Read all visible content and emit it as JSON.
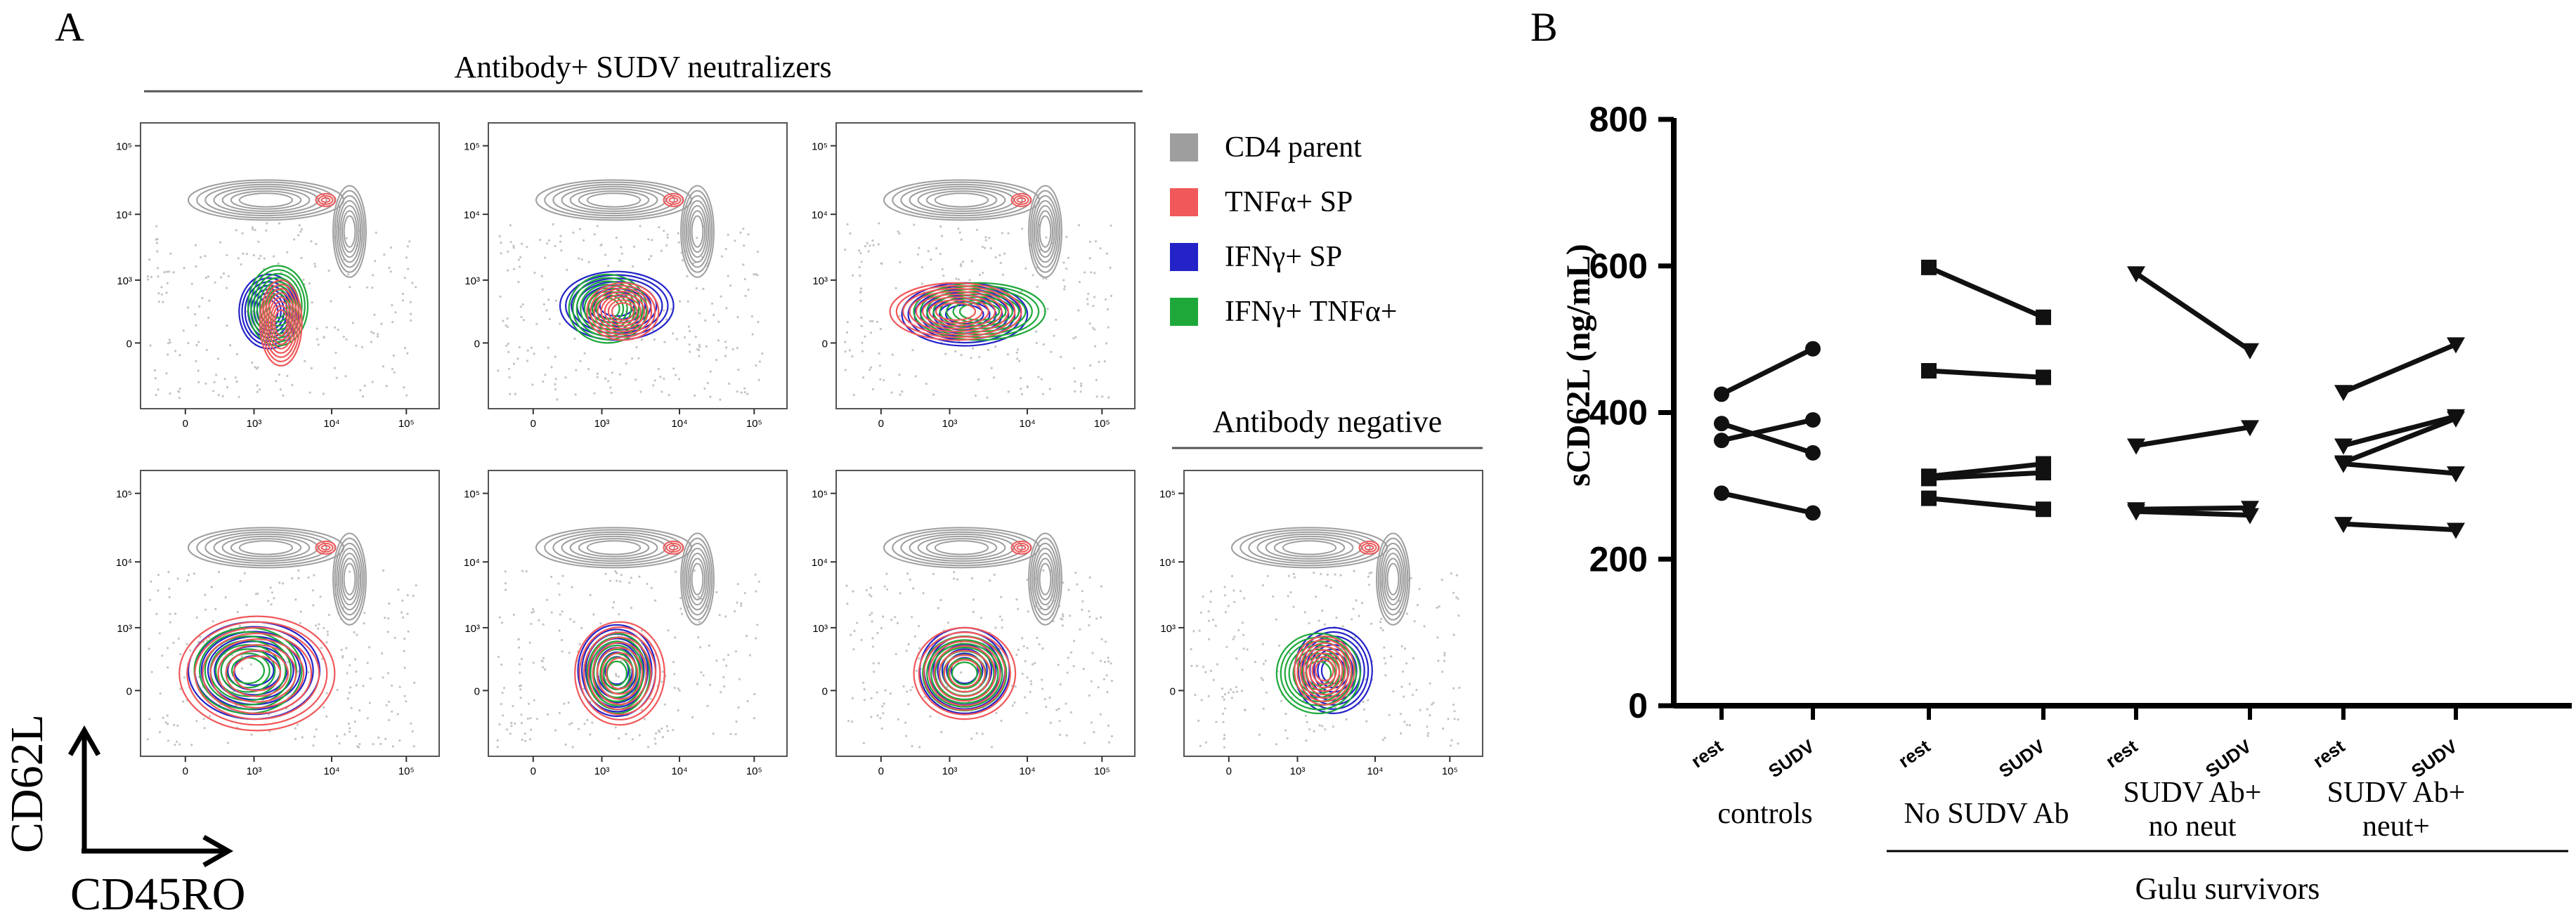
{
  "panel_a": {
    "label": "A",
    "header_top": "Antibody+ SUDV neutralizers",
    "header_negative": "Antibody negative",
    "y_axis_label": "CD62L",
    "x_axis_label": "CD45RO",
    "y_ticks": [
      "10⁵",
      "10⁴",
      "10³",
      "0"
    ],
    "x_ticks": [
      "0",
      "10³",
      "10⁴",
      "10⁵"
    ],
    "legend": [
      {
        "label": "CD4 parent",
        "color": "#9e9e9e"
      },
      {
        "label": "TNFα+ SP",
        "color": "#f0585a"
      },
      {
        "label": "IFNγ+ SP",
        "color": "#2323c8"
      },
      {
        "label": "IFNγ+ TNFα+",
        "color": "#1fa83a"
      }
    ]
  },
  "panel_b": {
    "label": "B",
    "group_label_gulu": "Gulu survivors"
  },
  "chart_data": {
    "type": "line",
    "title": "",
    "ylabel": "sCD62L (ng/mL)",
    "xlabel": "",
    "ylim": [
      0,
      800
    ],
    "y_ticks": [
      0,
      200,
      400,
      600,
      800
    ],
    "x_tick_labels": [
      "rest",
      "SUDV"
    ],
    "groups": [
      {
        "name": "controls",
        "marker": "circle",
        "pairs": [
          [
            425,
            487
          ],
          [
            385,
            345
          ],
          [
            362,
            390
          ],
          [
            290,
            263
          ]
        ]
      },
      {
        "name": "No SUDV Ab",
        "marker": "square",
        "pairs": [
          [
            598,
            530
          ],
          [
            457,
            448
          ],
          [
            313,
            330
          ],
          [
            310,
            318
          ],
          [
            283,
            268
          ]
        ]
      },
      {
        "name": "SUDV Ab+ no neut",
        "marker": "triangle-down",
        "pairs": [
          [
            590,
            485
          ],
          [
            355,
            380
          ],
          [
            268,
            270
          ],
          [
            265,
            260
          ]
        ]
      },
      {
        "name": "SUDV Ab+ neut+",
        "marker": "triangle-down",
        "pairs": [
          [
            428,
            493
          ],
          [
            355,
            395
          ],
          [
            332,
            392
          ],
          [
            330,
            317
          ],
          [
            248,
            240
          ]
        ]
      }
    ]
  },
  "colors": {
    "parent": "#9e9e9e",
    "tnf": "#f0585a",
    "ifn": "#2323c8",
    "double": "#1fa83a"
  }
}
